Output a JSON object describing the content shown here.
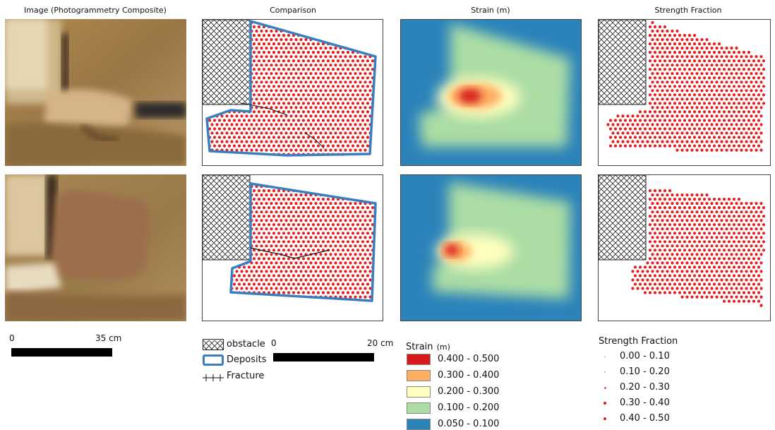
{
  "columns": {
    "image": "Image (Photogrammetry Composite)",
    "comparison": "Comparison",
    "strain": "Strain (m)",
    "strength": "Strength Fraction"
  },
  "scalebar_image": {
    "start": "0",
    "end": "35 cm"
  },
  "scalebar_comparison": {
    "start": "0",
    "end": "20 cm"
  },
  "comparison_legend": {
    "obstacle": "obstacle",
    "deposits": "Deposits",
    "fracture": "Fracture"
  },
  "strain_legend": {
    "title": "Strain",
    "unit": "(m)",
    "items": [
      {
        "label": "0.400 - 0.500",
        "color": "#d7191c"
      },
      {
        "label": "0.300 - 0.400",
        "color": "#fdae61"
      },
      {
        "label": "0.200 - 0.300",
        "color": "#ffffbf"
      },
      {
        "label": "0.100 - 0.200",
        "color": "#abdda4"
      },
      {
        "label": "0.050 - 0.100",
        "color": "#2b83ba"
      }
    ]
  },
  "strength_legend": {
    "title": "Strength Fraction",
    "items": [
      {
        "label": "0.00 - 0.10"
      },
      {
        "label": "0.10 - 0.20"
      },
      {
        "label": "0.20 - 0.30"
      },
      {
        "label": "0.30 - 0.40"
      },
      {
        "label": "0.40 - 0.50"
      }
    ]
  },
  "colors": {
    "deposit_outline": "#3a7ebf",
    "particle": "#e02020",
    "strain_background": "#2b83ba"
  }
}
